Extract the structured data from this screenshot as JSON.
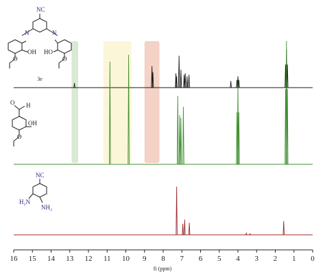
{
  "chart_data": {
    "type": "line",
    "title": "",
    "xlabel": "fi (ppm)",
    "ylabel": "",
    "xlim": [
      16,
      0
    ],
    "x_ticks": [
      "16",
      "15",
      "14",
      "13",
      "12",
      "11",
      "10",
      "9",
      "8",
      "7",
      "6",
      "5",
      "4",
      "3",
      "2",
      "1",
      "0"
    ],
    "grid": false,
    "highlight_regions": [
      {
        "from": 12.9,
        "to": 12.55,
        "color": "#cfe3c8"
      },
      {
        "from": 11.2,
        "to": 9.7,
        "color": "#fbf4cf"
      },
      {
        "from": 9.0,
        "to": 8.2,
        "color": "#f1c7b6"
      }
    ],
    "series": [
      {
        "name": "3e",
        "color": "#1a1a1a",
        "peaks": [
          {
            "x": 12.75,
            "h": 0.09
          },
          {
            "x": 8.6,
            "h": 0.42
          },
          {
            "x": 8.55,
            "h": 0.3
          },
          {
            "x": 7.32,
            "h": 0.28
          },
          {
            "x": 7.28,
            "h": 0.22
          },
          {
            "x": 7.15,
            "h": 0.62
          },
          {
            "x": 7.05,
            "h": 0.35
          },
          {
            "x": 6.88,
            "h": 0.25
          },
          {
            "x": 6.82,
            "h": 0.28
          },
          {
            "x": 6.72,
            "h": 0.22
          },
          {
            "x": 6.62,
            "h": 0.25
          },
          {
            "x": 4.38,
            "h": 0.13
          },
          {
            "x": 4.05,
            "h": 0.15
          },
          {
            "x": 4.0,
            "h": 0.22
          },
          {
            "x": 3.95,
            "h": 0.15
          },
          {
            "x": 1.45,
            "h": 0.45
          },
          {
            "x": 1.4,
            "h": 0.75
          },
          {
            "x": 1.35,
            "h": 0.45
          }
        ]
      },
      {
        "name": "",
        "color": "#3e8e2f",
        "peaks": [
          {
            "x": 10.85,
            "h": 0.75
          },
          {
            "x": 9.85,
            "h": 0.8
          },
          {
            "x": 7.22,
            "h": 0.5
          },
          {
            "x": 7.12,
            "h": 0.36
          },
          {
            "x": 7.05,
            "h": 0.34
          },
          {
            "x": 6.92,
            "h": 0.42
          },
          {
            "x": 4.05,
            "h": 0.38
          },
          {
            "x": 4.0,
            "h": 0.6
          },
          {
            "x": 3.95,
            "h": 0.38
          },
          {
            "x": 1.45,
            "h": 0.55
          },
          {
            "x": 1.4,
            "h": 0.9
          },
          {
            "x": 1.35,
            "h": 0.55
          }
        ]
      },
      {
        "name": "",
        "color": "#9a2a2a",
        "peaks": [
          {
            "x": 7.28,
            "h": 0.88
          },
          {
            "x": 6.95,
            "h": 0.2
          },
          {
            "x": 6.85,
            "h": 0.28
          },
          {
            "x": 6.6,
            "h": 0.22
          },
          {
            "x": 3.55,
            "h": 0.03
          },
          {
            "x": 3.35,
            "h": 0.02
          },
          {
            "x": 1.55,
            "h": 0.25
          }
        ]
      }
    ]
  },
  "structures": {
    "s1": {
      "nc": "NC",
      "n_left": "N",
      "n_right": "N",
      "oh_left": "OH",
      "oh_right": "HO",
      "o_left": "O",
      "o_right": "O",
      "label": "3e"
    },
    "s2": {
      "h": "H",
      "o_ald": "O",
      "oh": "OH",
      "o": "O"
    },
    "s3": {
      "nc": "NC",
      "h2n": "H₂N",
      "nh2": "NH₂"
    }
  }
}
